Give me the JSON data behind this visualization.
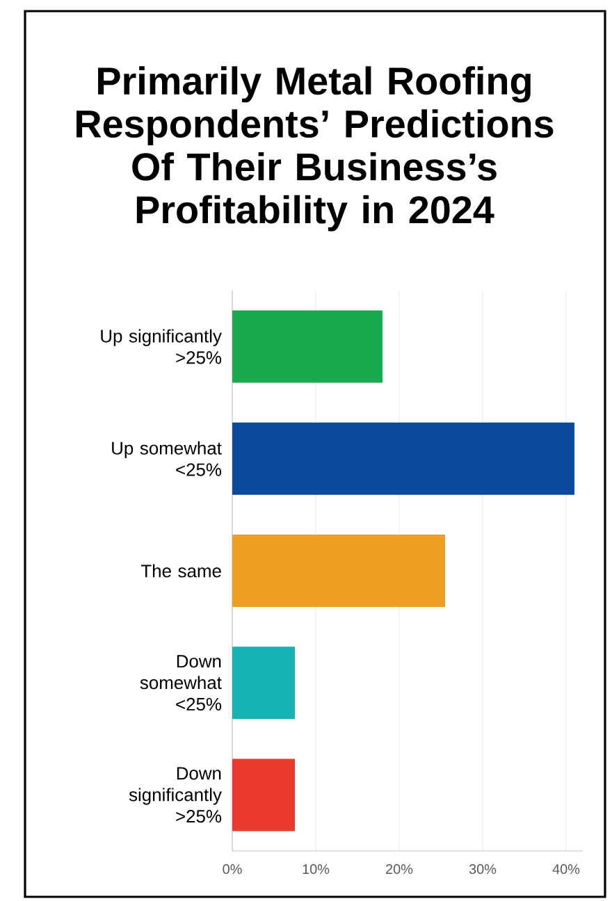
{
  "chart_data": {
    "type": "bar",
    "orientation": "horizontal",
    "title": "Primarily Metal Roofing Respondents’ Predictions Of Their Business’s Profitability in 2024",
    "categories": [
      "Up significantly >25%",
      "Up somewhat <25%",
      "The same",
      "Down somewhat <25%",
      "Down significantly >25%"
    ],
    "values": [
      18,
      41,
      25.5,
      7.5,
      7.5
    ],
    "colors": [
      "#1aaa4e",
      "#0b4a9c",
      "#eea023",
      "#17b3b4",
      "#e93a2c"
    ],
    "xlim": [
      0,
      42
    ],
    "xticks": [
      {
        "value": 0,
        "label": "0%"
      },
      {
        "value": 10,
        "label": "10%"
      },
      {
        "value": 20,
        "label": "20%"
      },
      {
        "value": 30,
        "label": "30%"
      },
      {
        "value": 40,
        "label": "40%"
      }
    ],
    "grid": "x"
  }
}
